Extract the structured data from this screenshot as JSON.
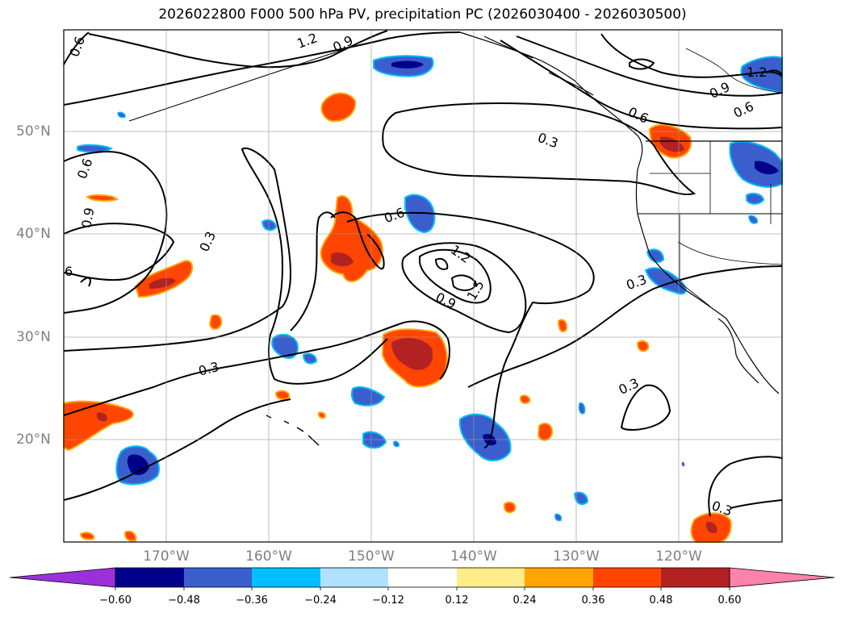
{
  "title": "2026022800 F000 500 hPa PV, precipitation PC (2026030400 - 2026030500)",
  "lat_labels": [
    "50°N",
    "40°N",
    "30°N",
    "20°N"
  ],
  "lon_labels": [
    "170°W",
    "160°W",
    "150°W",
    "140°W",
    "130°W",
    "120°W"
  ],
  "contour_labels": [
    "0.6",
    "1.2",
    "0.9",
    "0.3",
    "0.6",
    "0.9",
    "0.3",
    "6",
    "0.6",
    "1.2",
    "1.5",
    "0.9",
    "0.3",
    "0.3",
    "0.3",
    "0.9",
    "0.6",
    "0.6",
    "1.2",
    "0.3"
  ],
  "colorbar": {
    "ticks": [
      "−0.60",
      "−0.48",
      "−0.36",
      "−0.24",
      "−0.12",
      "0.12",
      "0.24",
      "0.36",
      "0.48",
      "0.60"
    ],
    "colors": [
      "#9b30d9",
      "#00008b",
      "#3a5fcd",
      "#00bfff",
      "#b0e2ff",
      "#ffffff",
      "#ffec8b",
      "#ffa500",
      "#ff4500",
      "#b22222",
      "#ff82ab"
    ]
  }
}
